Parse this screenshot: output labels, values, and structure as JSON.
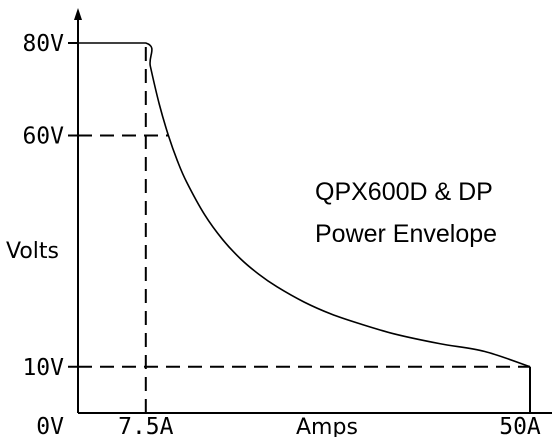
{
  "chart_data": {
    "type": "line",
    "title_lines": [
      "QPX600D & DP",
      "Power Envelope"
    ],
    "xlabel": "Amps",
    "ylabel": "Volts",
    "xlim": [
      0,
      50
    ],
    "ylim": [
      0,
      80
    ],
    "y_ticks": [
      {
        "value": 80,
        "label": "80V"
      },
      {
        "value": 60,
        "label": "60V"
      },
      {
        "value": 10,
        "label": "10V"
      },
      {
        "value": 0,
        "label": "0V"
      }
    ],
    "x_ticks": [
      {
        "value": 7.5,
        "label": "7.5A"
      },
      {
        "value": 50,
        "label": "50A"
      }
    ],
    "series": [
      {
        "points": [
          [
            0,
            80
          ],
          [
            7.5,
            80
          ],
          [
            8,
            75
          ],
          [
            9,
            66.7
          ],
          [
            10,
            60
          ],
          [
            11,
            54.5
          ],
          [
            12,
            50
          ],
          [
            14,
            42.9
          ],
          [
            16,
            37.5
          ],
          [
            18,
            33.3
          ],
          [
            20,
            30
          ],
          [
            22,
            27.3
          ],
          [
            25,
            24
          ],
          [
            28,
            21.4
          ],
          [
            31,
            19.4
          ],
          [
            35,
            17.1
          ],
          [
            40,
            15
          ],
          [
            45,
            13.3
          ],
          [
            50,
            10
          ]
        ]
      }
    ],
    "reference_lines": [
      {
        "type": "horizontal",
        "y": 60,
        "x_from": 0,
        "x_to": 10,
        "style": "dashed"
      },
      {
        "type": "horizontal",
        "y": 10,
        "x_from": 0,
        "x_to": 50,
        "style": "dashed"
      },
      {
        "type": "vertical",
        "x": 7.5,
        "y_from": 0,
        "y_to": 80,
        "style": "dashed"
      },
      {
        "type": "vertical",
        "x": 50,
        "y_from": 0,
        "y_to": 10,
        "style": "solid"
      }
    ],
    "grid": false,
    "legend": "none"
  }
}
